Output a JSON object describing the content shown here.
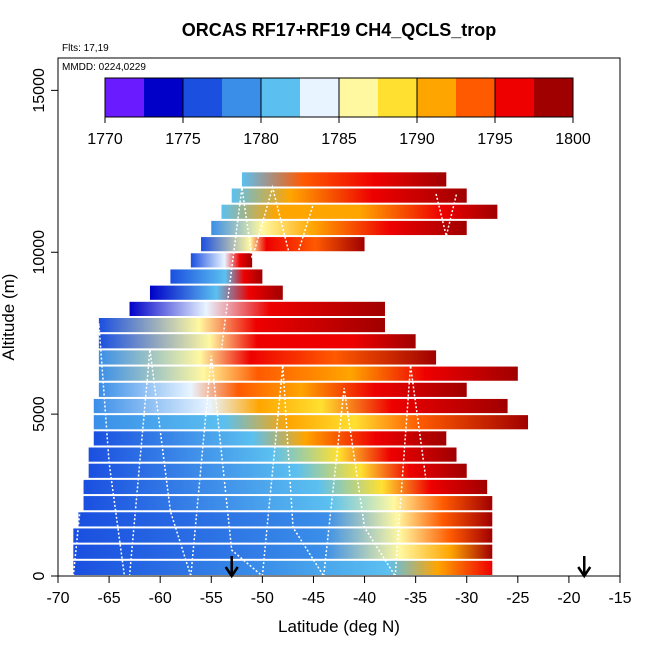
{
  "chart_data": {
    "type": "heatmap",
    "title": "ORCAS RF17+RF19 CH4_QCLS_trop",
    "flights_note": "Flts: 17,19",
    "date_note": "MMDD: 0224,0229",
    "xlabel": "Latitude (deg N)",
    "ylabel": "Altitude (m)",
    "xlim": [
      -70,
      -15
    ],
    "ylim": [
      0,
      16000
    ],
    "xticks": [
      -70,
      -65,
      -60,
      -55,
      -50,
      -45,
      -40,
      -35,
      -30,
      -25,
      -20,
      -15
    ],
    "yticks": [
      0,
      5000,
      10000,
      15000
    ],
    "colorbar": {
      "range": [
        1770,
        1800
      ],
      "ticks": [
        1770,
        1775,
        1780,
        1785,
        1790,
        1795,
        1800
      ],
      "colors": [
        "#6a1bff",
        "#0000c8",
        "#1a4fe0",
        "#3a8ee8",
        "#5bc0f0",
        "#e8f4ff",
        "#fff8a0",
        "#ffe030",
        "#ffa500",
        "#ff5a00",
        "#ee0000",
        "#a00000"
      ]
    },
    "markers": [
      {
        "name": "arrow-1",
        "latitude": -53
      },
      {
        "name": "arrow-2",
        "latitude": -18.5
      }
    ],
    "rows": [
      {
        "alt": 0,
        "x0": -68.5,
        "x1": -27.5,
        "stops": [
          [
            0,
            1775
          ],
          [
            0.45,
            1779
          ],
          [
            0.75,
            1782
          ],
          [
            0.87,
            1790
          ],
          [
            1,
            1797
          ]
        ]
      },
      {
        "alt": 500,
        "x0": -68.5,
        "x1": -27.5,
        "stops": [
          [
            0,
            1777
          ],
          [
            0.6,
            1779
          ],
          [
            0.78,
            1785
          ],
          [
            0.9,
            1792
          ],
          [
            1,
            1798
          ]
        ]
      },
      {
        "alt": 1000,
        "x0": -68.5,
        "x1": -27.5,
        "stops": [
          [
            0,
            1777
          ],
          [
            0.6,
            1779
          ],
          [
            0.78,
            1787
          ],
          [
            0.9,
            1794
          ],
          [
            1,
            1798
          ]
        ]
      },
      {
        "alt": 1500,
        "x0": -68,
        "x1": -27.5,
        "stops": [
          [
            0,
            1777
          ],
          [
            0.6,
            1779
          ],
          [
            0.77,
            1787
          ],
          [
            0.88,
            1794
          ],
          [
            1,
            1798
          ]
        ]
      },
      {
        "alt": 2000,
        "x0": -67.5,
        "x1": -27.5,
        "stops": [
          [
            0,
            1777
          ],
          [
            0.6,
            1780
          ],
          [
            0.76,
            1787
          ],
          [
            0.88,
            1794
          ],
          [
            1,
            1799
          ]
        ]
      },
      {
        "alt": 2500,
        "x0": -67.5,
        "x1": -28,
        "stops": [
          [
            0,
            1777
          ],
          [
            0.58,
            1780
          ],
          [
            0.74,
            1788
          ],
          [
            0.86,
            1795
          ],
          [
            1,
            1799
          ]
        ]
      },
      {
        "alt": 3000,
        "x0": -67,
        "x1": -30,
        "stops": [
          [
            0,
            1777
          ],
          [
            0.55,
            1780
          ],
          [
            0.72,
            1789
          ],
          [
            0.85,
            1795
          ],
          [
            1,
            1799
          ]
        ]
      },
      {
        "alt": 3500,
        "x0": -67,
        "x1": -31,
        "stops": [
          [
            0,
            1777
          ],
          [
            0.5,
            1781
          ],
          [
            0.68,
            1789
          ],
          [
            0.82,
            1795
          ],
          [
            1,
            1799
          ]
        ]
      },
      {
        "alt": 4000,
        "x0": -66.5,
        "x1": -32,
        "stops": [
          [
            0,
            1777
          ],
          [
            0.45,
            1782
          ],
          [
            0.6,
            1791
          ],
          [
            0.8,
            1796
          ],
          [
            1,
            1799
          ]
        ]
      },
      {
        "alt": 4500,
        "x0": -66.5,
        "x1": -24,
        "stops": [
          [
            0,
            1778
          ],
          [
            0.3,
            1782
          ],
          [
            0.45,
            1792
          ],
          [
            0.6,
            1788
          ],
          [
            0.75,
            1794
          ],
          [
            1,
            1799
          ]
        ]
      },
      {
        "alt": 5000,
        "x0": -66.5,
        "x1": -26,
        "stops": [
          [
            0,
            1778
          ],
          [
            0.28,
            1783
          ],
          [
            0.4,
            1792
          ],
          [
            0.55,
            1788
          ],
          [
            0.72,
            1795
          ],
          [
            1,
            1799
          ]
        ]
      },
      {
        "alt": 5500,
        "x0": -66,
        "x1": -30,
        "stops": [
          [
            0,
            1778
          ],
          [
            0.25,
            1784
          ],
          [
            0.38,
            1793
          ],
          [
            0.55,
            1790
          ],
          [
            0.75,
            1796
          ],
          [
            1,
            1799
          ]
        ]
      },
      {
        "alt": 6000,
        "x0": -66,
        "x1": -25,
        "stops": [
          [
            0,
            1778
          ],
          [
            0.25,
            1785
          ],
          [
            0.38,
            1794
          ],
          [
            0.6,
            1791
          ],
          [
            0.78,
            1796
          ],
          [
            1,
            1799
          ]
        ]
      },
      {
        "alt": 6500,
        "x0": -66,
        "x1": -33,
        "stops": [
          [
            0,
            1778
          ],
          [
            0.3,
            1786
          ],
          [
            0.45,
            1795
          ],
          [
            0.7,
            1793
          ],
          [
            1,
            1799
          ]
        ]
      },
      {
        "alt": 7000,
        "x0": -66,
        "x1": -35,
        "stops": [
          [
            0,
            1777
          ],
          [
            0.35,
            1786
          ],
          [
            0.5,
            1795
          ],
          [
            0.8,
            1796
          ],
          [
            1,
            1799
          ]
        ]
      },
      {
        "alt": 7500,
        "x0": -66,
        "x1": -38,
        "stops": [
          [
            0,
            1775
          ],
          [
            0.35,
            1785
          ],
          [
            0.55,
            1796
          ],
          [
            1,
            1799
          ]
        ]
      },
      {
        "alt": 8000,
        "x0": -63,
        "x1": -38,
        "stops": [
          [
            0,
            1774
          ],
          [
            0.3,
            1783
          ],
          [
            0.55,
            1796
          ],
          [
            1,
            1799
          ]
        ]
      },
      {
        "alt": 8500,
        "x0": -61,
        "x1": -48,
        "stops": [
          [
            0,
            1774
          ],
          [
            0.5,
            1782
          ],
          [
            0.75,
            1796
          ],
          [
            1,
            1799
          ]
        ]
      },
      {
        "alt": 9000,
        "x0": -59,
        "x1": -50,
        "stops": [
          [
            0,
            1775
          ],
          [
            0.6,
            1782
          ],
          [
            0.8,
            1797
          ],
          [
            1,
            1799
          ]
        ]
      },
      {
        "alt": 9500,
        "x0": -57,
        "x1": -51,
        "stops": [
          [
            0,
            1775
          ],
          [
            0.55,
            1783
          ],
          [
            0.8,
            1797
          ],
          [
            1,
            1799
          ]
        ]
      },
      {
        "alt": 10000,
        "x0": -56,
        "x1": -40,
        "stops": [
          [
            0,
            1776
          ],
          [
            0.3,
            1785
          ],
          [
            0.4,
            1797
          ],
          [
            0.7,
            1794
          ],
          [
            1,
            1799
          ]
        ]
      },
      {
        "alt": 10500,
        "x0": -55,
        "x1": -30,
        "stops": [
          [
            0,
            1778
          ],
          [
            0.2,
            1787
          ],
          [
            0.4,
            1790
          ],
          [
            0.7,
            1796
          ],
          [
            1,
            1799
          ]
        ]
      },
      {
        "alt": 11000,
        "x0": -54,
        "x1": -27,
        "stops": [
          [
            0,
            1780
          ],
          [
            0.2,
            1790
          ],
          [
            0.5,
            1792
          ],
          [
            0.8,
            1797
          ],
          [
            1,
            1799
          ]
        ]
      },
      {
        "alt": 11500,
        "x0": -53,
        "x1": -30,
        "stops": [
          [
            0,
            1781
          ],
          [
            0.25,
            1792
          ],
          [
            0.6,
            1795
          ],
          [
            1,
            1799
          ]
        ]
      },
      {
        "alt": 12000,
        "x0": -52,
        "x1": -32,
        "stops": [
          [
            0,
            1780
          ],
          [
            0.3,
            1793
          ],
          [
            0.65,
            1796
          ],
          [
            1,
            1799
          ]
        ]
      }
    ],
    "flight_tracks": [
      [
        [
          -68.5,
          0
        ],
        [
          -66,
          7800
        ],
        [
          -65,
          3500
        ],
        [
          -63.5,
          0
        ]
      ],
      [
        [
          -63,
          0
        ],
        [
          -61,
          7000
        ],
        [
          -59,
          2000
        ],
        [
          -57,
          0
        ]
      ],
      [
        [
          -57,
          0
        ],
        [
          -55,
          6800
        ],
        [
          -53,
          800
        ],
        [
          -50,
          0
        ]
      ],
      [
        [
          -50,
          0
        ],
        [
          -48,
          6500
        ],
        [
          -47,
          1500
        ],
        [
          -44,
          0
        ]
      ],
      [
        [
          -44,
          0
        ],
        [
          -42,
          5800
        ],
        [
          -40,
          1500
        ],
        [
          -37,
          0
        ]
      ],
      [
        [
          -37,
          0
        ],
        [
          -35.5,
          6500
        ],
        [
          -34,
          3000
        ]
      ],
      [
        [
          -54,
          7000
        ],
        [
          -52,
          12000
        ],
        [
          -51,
          9800
        ],
        [
          -49,
          12000
        ],
        [
          -47,
          9500
        ],
        [
          -45,
          11500
        ]
      ],
      [
        [
          -33,
          11800
        ],
        [
          -32,
          10500
        ],
        [
          -31,
          11800
        ]
      ]
    ]
  }
}
